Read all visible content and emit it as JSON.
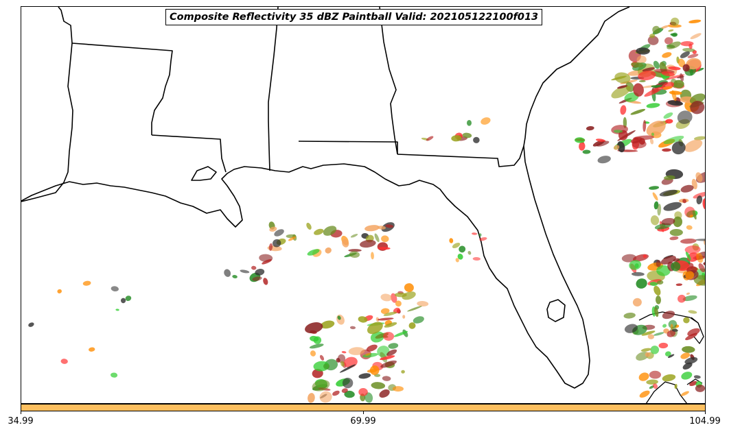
{
  "title": "Composite Reflectivity 35 dBZ Paintball Valid: 202105122100f013",
  "colorbar": {
    "color": "#fdbf5f",
    "ticks": [
      "34.99",
      "69.99",
      "104.99"
    ]
  },
  "palette": [
    "#8b2323",
    "#228b22",
    "#ff8c00",
    "#ff3030",
    "#9aa21c",
    "#2f2f2f",
    "#32cd32",
    "#f4a460",
    "#b22222",
    "#6b8e23"
  ]
}
